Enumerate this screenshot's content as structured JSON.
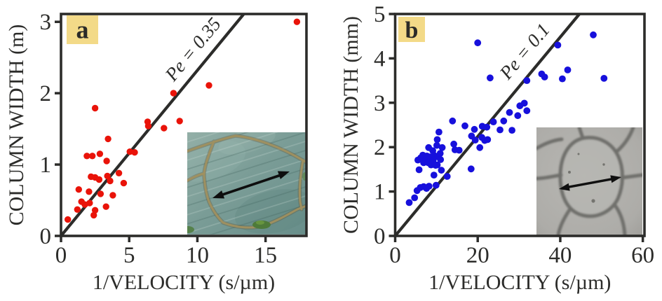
{
  "figure_title": "",
  "ink_color": "#2c2c2a",
  "chart_data": [
    {
      "type": "scatter",
      "panel_label": "a",
      "panel_label_bg": "#f3da88",
      "xlabel": "1/VELOCITY (s/µm)",
      "ylabel": "COLUMN WIDTH (m)",
      "xlim": [
        0,
        18.0
      ],
      "ylim": [
        0,
        3.11
      ],
      "x_ticks": [
        0,
        5,
        10,
        15
      ],
      "y_ticks": [
        0,
        1,
        2,
        3
      ],
      "grid": false,
      "legend": "none",
      "point_color": "#e91309",
      "line_color": "#2c2c2a",
      "fit_line": {
        "label": "Pe = 0.35",
        "slope": 0.232,
        "intercept": 0
      },
      "inset": {
        "description": "photo of columnar basalt colonnade surface: teal-gray rock with tan polygonal cracks, green moss patches, black double-headed arrow marking one column width"
      },
      "points": [
        [
          0.5,
          0.23
        ],
        [
          1.2,
          0.37
        ],
        [
          1.3,
          0.65
        ],
        [
          1.5,
          0.48
        ],
        [
          1.75,
          0.44
        ],
        [
          1.9,
          1.12
        ],
        [
          2.05,
          0.62
        ],
        [
          2.1,
          0.46
        ],
        [
          2.2,
          0.83
        ],
        [
          2.3,
          1.12
        ],
        [
          2.4,
          0.29
        ],
        [
          2.5,
          0.36
        ],
        [
          2.5,
          0.82
        ],
        [
          2.5,
          1.79
        ],
        [
          2.8,
          0.79
        ],
        [
          2.85,
          1.15
        ],
        [
          2.9,
          0.59
        ],
        [
          3.3,
          0.41
        ],
        [
          3.35,
          1.05
        ],
        [
          3.4,
          0.84
        ],
        [
          3.45,
          1.36
        ],
        [
          3.6,
          0.77
        ],
        [
          3.8,
          0.57
        ],
        [
          4.25,
          0.88
        ],
        [
          4.6,
          0.74
        ],
        [
          5.05,
          1.18
        ],
        [
          5.4,
          1.17
        ],
        [
          6.35,
          1.6
        ],
        [
          6.4,
          1.54
        ],
        [
          7.55,
          1.51
        ],
        [
          8.25,
          2.0
        ],
        [
          8.7,
          1.61
        ],
        [
          10.85,
          2.11
        ],
        [
          17.3,
          3.0
        ]
      ]
    },
    {
      "type": "scatter",
      "panel_label": "b",
      "panel_label_bg": "#f3da88",
      "xlabel": "1/VELOCITY (s/µm)",
      "ylabel": "COLUMN WIDTH (mm)",
      "xlim": [
        0,
        60.4
      ],
      "ylim": [
        0,
        5.0
      ],
      "x_ticks": [
        0,
        20,
        40,
        60
      ],
      "y_ticks": [
        0,
        1,
        2,
        3,
        4,
        5
      ],
      "grid": false,
      "legend": "none",
      "point_color": "#1710dc",
      "line_color": "#2c2c2a",
      "fit_line": {
        "label": "Pe = 0.1",
        "slope": 0.112,
        "intercept": 0
      },
      "inset": {
        "description": "grayscale micrograph of directionally solidified columns: light gray polygonal cells with fuzzy dark boundaries, black double-headed arrow marking one cell width"
      },
      "points": [
        [
          3.4,
          0.75
        ],
        [
          4.7,
          0.86
        ],
        [
          5.3,
          1.02
        ],
        [
          6.1,
          1.09
        ],
        [
          6.9,
          1.11
        ],
        [
          7.6,
          1.07
        ],
        [
          8.2,
          1.12
        ],
        [
          9.9,
          1.14
        ],
        [
          5.8,
          1.49
        ],
        [
          9.4,
          1.37
        ],
        [
          10.2,
          1.6
        ],
        [
          11.2,
          1.48
        ],
        [
          12.6,
          1.34
        ],
        [
          18.4,
          1.51
        ],
        [
          5.5,
          1.71
        ],
        [
          6.2,
          1.76
        ],
        [
          6.7,
          1.82
        ],
        [
          6.9,
          1.65
        ],
        [
          7.4,
          1.72
        ],
        [
          7.7,
          1.8
        ],
        [
          8.0,
          1.65
        ],
        [
          8.1,
          1.99
        ],
        [
          8.5,
          1.78
        ],
        [
          8.7,
          1.6
        ],
        [
          9.1,
          1.92
        ],
        [
          9.2,
          1.7
        ],
        [
          9.5,
          1.81
        ],
        [
          9.8,
          1.59
        ],
        [
          10.1,
          2.04
        ],
        [
          10.4,
          1.78
        ],
        [
          10.9,
          1.86
        ],
        [
          11.0,
          1.72
        ],
        [
          11.4,
          1.99
        ],
        [
          10.2,
          2.17
        ],
        [
          10.6,
          2.34
        ],
        [
          13.9,
          2.59
        ],
        [
          14.2,
          2.07
        ],
        [
          14.5,
          1.94
        ],
        [
          15.5,
          1.93
        ],
        [
          16.9,
          2.48
        ],
        [
          18.5,
          2.25
        ],
        [
          19.2,
          2.4
        ],
        [
          19.4,
          2.16
        ],
        [
          20.5,
          1.99
        ],
        [
          21.0,
          2.22
        ],
        [
          21.7,
          2.15
        ],
        [
          21.1,
          2.47
        ],
        [
          22.2,
          2.45
        ],
        [
          22.4,
          2.17
        ],
        [
          23.8,
          2.57
        ],
        [
          25.4,
          2.39
        ],
        [
          26.3,
          2.59
        ],
        [
          27.7,
          2.78
        ],
        [
          28.3,
          2.38
        ],
        [
          29.7,
          2.71
        ],
        [
          30.2,
          2.93
        ],
        [
          31.3,
          2.99
        ],
        [
          31.9,
          2.82
        ],
        [
          23.0,
          3.56
        ],
        [
          31.9,
          3.5
        ],
        [
          35.5,
          3.65
        ],
        [
          36.2,
          3.58
        ],
        [
          40.5,
          3.54
        ],
        [
          41.8,
          3.74
        ],
        [
          50.6,
          3.55
        ],
        [
          20.0,
          4.35
        ],
        [
          39.4,
          4.3
        ],
        [
          48.0,
          4.53
        ]
      ]
    }
  ]
}
